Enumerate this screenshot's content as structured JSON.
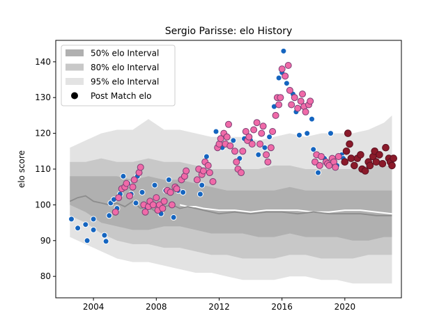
{
  "chart_data": {
    "type": "scatter",
    "title": "Sergio Parisse: elo History",
    "xlabel": "",
    "ylabel": "elo score",
    "xlim": [
      2001.6,
      2023.6
    ],
    "ylim": [
      74,
      146
    ],
    "x_ticks": [
      2004,
      2008,
      2012,
      2016,
      2020
    ],
    "y_ticks": [
      80,
      90,
      100,
      110,
      120,
      130,
      140
    ],
    "grid": false,
    "legend": {
      "placement": "top-left",
      "entries": [
        {
          "label": "50% elo Interval",
          "color": "#b0b0b0"
        },
        {
          "label": "80% elo Interval",
          "color": "#c8c8c8"
        },
        {
          "label": "95% elo Interval",
          "color": "#e3e3e3"
        },
        {
          "label": "Post Match elo",
          "color": "#000000"
        }
      ]
    },
    "colors": {
      "band50": "#b0b0b0",
      "band80": "#c8c8c8",
      "band95": "#e3e3e3",
      "median_line": "#8c8c8c",
      "blue_marker": "#1565c0",
      "pink_marker": "#f06aa8",
      "pink_edge": "#7a3f73",
      "maroon_marker": "#8b1a2a",
      "maroon_edge": "#5a1020"
    },
    "median_line": {
      "x": [
        2002.5,
        2003.0,
        2003.5,
        2004.0,
        2004.5,
        2005.0,
        2005.5,
        2006.0,
        2006.5,
        2007.0,
        2007.5,
        2008.0,
        2008.5,
        2009.0,
        2009.5,
        2010.0,
        2010.5,
        2011.0,
        2012.0,
        2013.0,
        2014.0,
        2015.0,
        2016.0,
        2017.0,
        2018.0,
        2019.0,
        2020.0,
        2021.0,
        2022.0,
        2023.0
      ],
      "y": [
        101,
        102,
        102.5,
        101,
        100.5,
        100,
        100.5,
        99.5,
        101,
        99,
        99.5,
        98,
        99.5,
        100,
        99,
        99.5,
        99,
        98.5,
        97.5,
        98,
        97.5,
        98,
        98,
        97.5,
        98,
        97.5,
        97.5,
        97.5,
        97,
        97
      ]
    },
    "white_line": {
      "x": [
        2009.5,
        2010.0,
        2010.5,
        2011.0,
        2012.0,
        2013.0,
        2014.0,
        2015.0,
        2016.0,
        2017.0,
        2018.0,
        2019.0,
        2020.0,
        2021.0,
        2022.0,
        2023.0
      ],
      "y": [
        100,
        99.5,
        99.5,
        99,
        98.5,
        98.5,
        98,
        98.5,
        98.5,
        98.5,
        98,
        98,
        98.5,
        98.5,
        98,
        97.5
      ]
    },
    "bands": {
      "x": [
        2002.5,
        2003.5,
        2004.5,
        2005.5,
        2006.5,
        2007.5,
        2008.5,
        2009.5,
        2010.5,
        2011.5,
        2012.5,
        2013.5,
        2014.5,
        2015.5,
        2016.5,
        2017.5,
        2018.5,
        2019.5,
        2020.5,
        2021.5,
        2022.5,
        2023.0
      ],
      "p50_low": [
        100,
        98,
        95,
        94,
        93,
        93,
        94,
        94,
        93,
        92,
        92,
        92,
        91,
        91,
        92,
        91,
        91,
        91,
        90,
        90,
        91,
        91
      ],
      "p50_high": [
        108,
        108,
        108,
        108,
        107,
        108,
        107,
        107,
        106,
        105,
        104,
        104,
        104,
        104,
        105,
        104,
        104,
        104,
        104,
        104,
        104,
        104
      ],
      "p80_low": [
        97,
        95,
        92,
        90,
        89,
        89,
        88,
        88,
        87,
        86,
        86,
        85,
        85,
        85,
        86,
        86,
        85,
        85,
        85,
        86,
        86,
        86
      ],
      "p80_high": [
        112,
        112,
        113,
        112,
        112,
        113,
        112,
        112,
        111,
        110,
        110,
        110,
        110,
        111,
        111,
        110,
        110,
        110,
        110,
        111,
        111,
        111
      ],
      "p95_low": [
        91,
        89,
        87,
        85,
        84,
        84,
        83,
        82,
        81,
        81,
        80,
        79,
        79,
        79,
        80,
        80,
        79,
        79,
        78,
        78,
        78,
        78
      ],
      "p95_high": [
        116,
        118,
        120,
        121,
        121,
        124,
        121,
        121,
        120,
        119,
        119,
        119,
        118,
        119,
        120,
        119,
        120,
        120,
        120,
        121,
        123,
        125
      ]
    },
    "series": [
      {
        "name": "Post Match elo",
        "group": "blue",
        "points": [
          [
            2002.6,
            96
          ],
          [
            2003.0,
            93.5
          ],
          [
            2003.5,
            94.5
          ],
          [
            2003.6,
            90
          ],
          [
            2004.0,
            96
          ],
          [
            2004.0,
            93
          ],
          [
            2004.7,
            91.5
          ],
          [
            2004.8,
            89.8
          ],
          [
            2005.0,
            97
          ],
          [
            2005.1,
            100.5
          ],
          [
            2005.3,
            101.5
          ],
          [
            2005.5,
            99
          ],
          [
            2005.7,
            103
          ],
          [
            2005.9,
            108
          ],
          [
            2006.2,
            106
          ],
          [
            2006.4,
            103
          ],
          [
            2006.7,
            100.5
          ],
          [
            2006.8,
            108
          ],
          [
            2007.1,
            103.5
          ],
          [
            2007.4,
            99
          ],
          [
            2007.9,
            105.5
          ],
          [
            2008.3,
            97.5
          ],
          [
            2008.6,
            104
          ],
          [
            2008.8,
            107
          ],
          [
            2009.1,
            96.5
          ],
          [
            2009.4,
            104
          ],
          [
            2009.7,
            103.5
          ],
          [
            2010.8,
            103
          ],
          [
            2010.9,
            105.5
          ],
          [
            2011.2,
            113.5
          ],
          [
            2011.8,
            120.5
          ],
          [
            2012.2,
            116
          ],
          [
            2012.9,
            118
          ],
          [
            2013.3,
            113
          ],
          [
            2013.6,
            118.5
          ],
          [
            2014.0,
            118
          ],
          [
            2014.5,
            114
          ],
          [
            2014.9,
            116
          ],
          [
            2015.2,
            119
          ],
          [
            2015.5,
            127.5
          ],
          [
            2015.8,
            135.5
          ],
          [
            2016.0,
            137
          ],
          [
            2016.1,
            143
          ],
          [
            2016.3,
            134
          ],
          [
            2016.7,
            131
          ],
          [
            2016.9,
            126
          ],
          [
            2017.1,
            119.5
          ],
          [
            2017.6,
            120
          ],
          [
            2017.9,
            124
          ],
          [
            2018.0,
            115.5
          ],
          [
            2018.3,
            109
          ],
          [
            2018.7,
            113
          ],
          [
            2019.1,
            120
          ],
          [
            2019.5,
            111
          ],
          [
            2019.8,
            114
          ],
          [
            2019.9,
            113
          ]
        ]
      },
      {
        "name": "Post Match elo",
        "group": "pink",
        "points": [
          [
            2005.4,
            98
          ],
          [
            2005.6,
            102
          ],
          [
            2005.8,
            104.5
          ],
          [
            2006.0,
            105
          ],
          [
            2006.1,
            106
          ],
          [
            2006.3,
            102.5
          ],
          [
            2006.5,
            105
          ],
          [
            2006.6,
            107
          ],
          [
            2006.9,
            109
          ],
          [
            2007.0,
            110.5
          ],
          [
            2007.2,
            100
          ],
          [
            2007.3,
            98
          ],
          [
            2007.5,
            99.5
          ],
          [
            2007.6,
            101
          ],
          [
            2007.8,
            100
          ],
          [
            2008.0,
            102
          ],
          [
            2008.1,
            98.5
          ],
          [
            2008.2,
            100
          ],
          [
            2008.4,
            99
          ],
          [
            2008.5,
            101
          ],
          [
            2008.7,
            104
          ],
          [
            2008.9,
            103.5
          ],
          [
            2009.0,
            100
          ],
          [
            2009.2,
            105
          ],
          [
            2009.3,
            104.5
          ],
          [
            2009.6,
            107
          ],
          [
            2009.8,
            108
          ],
          [
            2009.9,
            109.5
          ],
          [
            2010.6,
            107
          ],
          [
            2010.7,
            110
          ],
          [
            2010.9,
            108.5
          ],
          [
            2011.0,
            109.5
          ],
          [
            2011.1,
            112
          ],
          [
            2011.3,
            111
          ],
          [
            2011.4,
            109
          ],
          [
            2011.6,
            106.5
          ],
          [
            2011.9,
            116
          ],
          [
            2012.0,
            117
          ],
          [
            2012.1,
            118.5
          ],
          [
            2012.3,
            120
          ],
          [
            2012.4,
            117
          ],
          [
            2012.5,
            119
          ],
          [
            2012.6,
            122.5
          ],
          [
            2012.7,
            116.5
          ],
          [
            2013.0,
            115
          ],
          [
            2013.1,
            112
          ],
          [
            2013.2,
            110
          ],
          [
            2013.4,
            109
          ],
          [
            2013.5,
            115
          ],
          [
            2013.7,
            120.5
          ],
          [
            2013.8,
            118
          ],
          [
            2013.9,
            119
          ],
          [
            2014.1,
            117
          ],
          [
            2014.2,
            121
          ],
          [
            2014.4,
            123
          ],
          [
            2014.6,
            117
          ],
          [
            2014.7,
            120
          ],
          [
            2014.8,
            122
          ],
          [
            2015.0,
            114
          ],
          [
            2015.1,
            112
          ],
          [
            2015.3,
            116
          ],
          [
            2015.4,
            120.5
          ],
          [
            2015.6,
            125
          ],
          [
            2015.7,
            130
          ],
          [
            2015.8,
            128
          ],
          [
            2015.9,
            130
          ],
          [
            2016.0,
            138
          ],
          [
            2016.2,
            136
          ],
          [
            2016.4,
            139
          ],
          [
            2016.5,
            132
          ],
          [
            2016.6,
            128
          ],
          [
            2016.8,
            130
          ],
          [
            2017.0,
            127
          ],
          [
            2017.2,
            129
          ],
          [
            2017.3,
            131
          ],
          [
            2017.4,
            127.5
          ],
          [
            2017.5,
            126
          ],
          [
            2017.7,
            128
          ],
          [
            2017.8,
            129
          ],
          [
            2018.1,
            112
          ],
          [
            2018.2,
            114
          ],
          [
            2018.4,
            111
          ],
          [
            2018.5,
            113.5
          ],
          [
            2018.8,
            112
          ],
          [
            2018.9,
            111.5
          ],
          [
            2019.0,
            111
          ],
          [
            2019.2,
            113
          ],
          [
            2019.3,
            112
          ],
          [
            2019.4,
            110.5
          ],
          [
            2019.6,
            113.5
          ]
        ]
      },
      {
        "name": "Post Match elo",
        "group": "maroon",
        "points": [
          [
            2020.0,
            112
          ],
          [
            2020.1,
            115
          ],
          [
            2020.2,
            120
          ],
          [
            2020.3,
            117
          ],
          [
            2020.4,
            113
          ],
          [
            2020.6,
            111
          ],
          [
            2020.8,
            113
          ],
          [
            2021.0,
            114
          ],
          [
            2021.1,
            110
          ],
          [
            2021.3,
            109.5
          ],
          [
            2021.5,
            112
          ],
          [
            2021.6,
            111
          ],
          [
            2021.8,
            113.5
          ],
          [
            2021.9,
            115
          ],
          [
            2022.0,
            112
          ],
          [
            2022.2,
            114
          ],
          [
            2022.4,
            111.5
          ],
          [
            2022.6,
            116
          ],
          [
            2022.8,
            113
          ],
          [
            2022.9,
            112
          ],
          [
            2023.0,
            111
          ],
          [
            2023.1,
            113
          ]
        ]
      }
    ]
  }
}
